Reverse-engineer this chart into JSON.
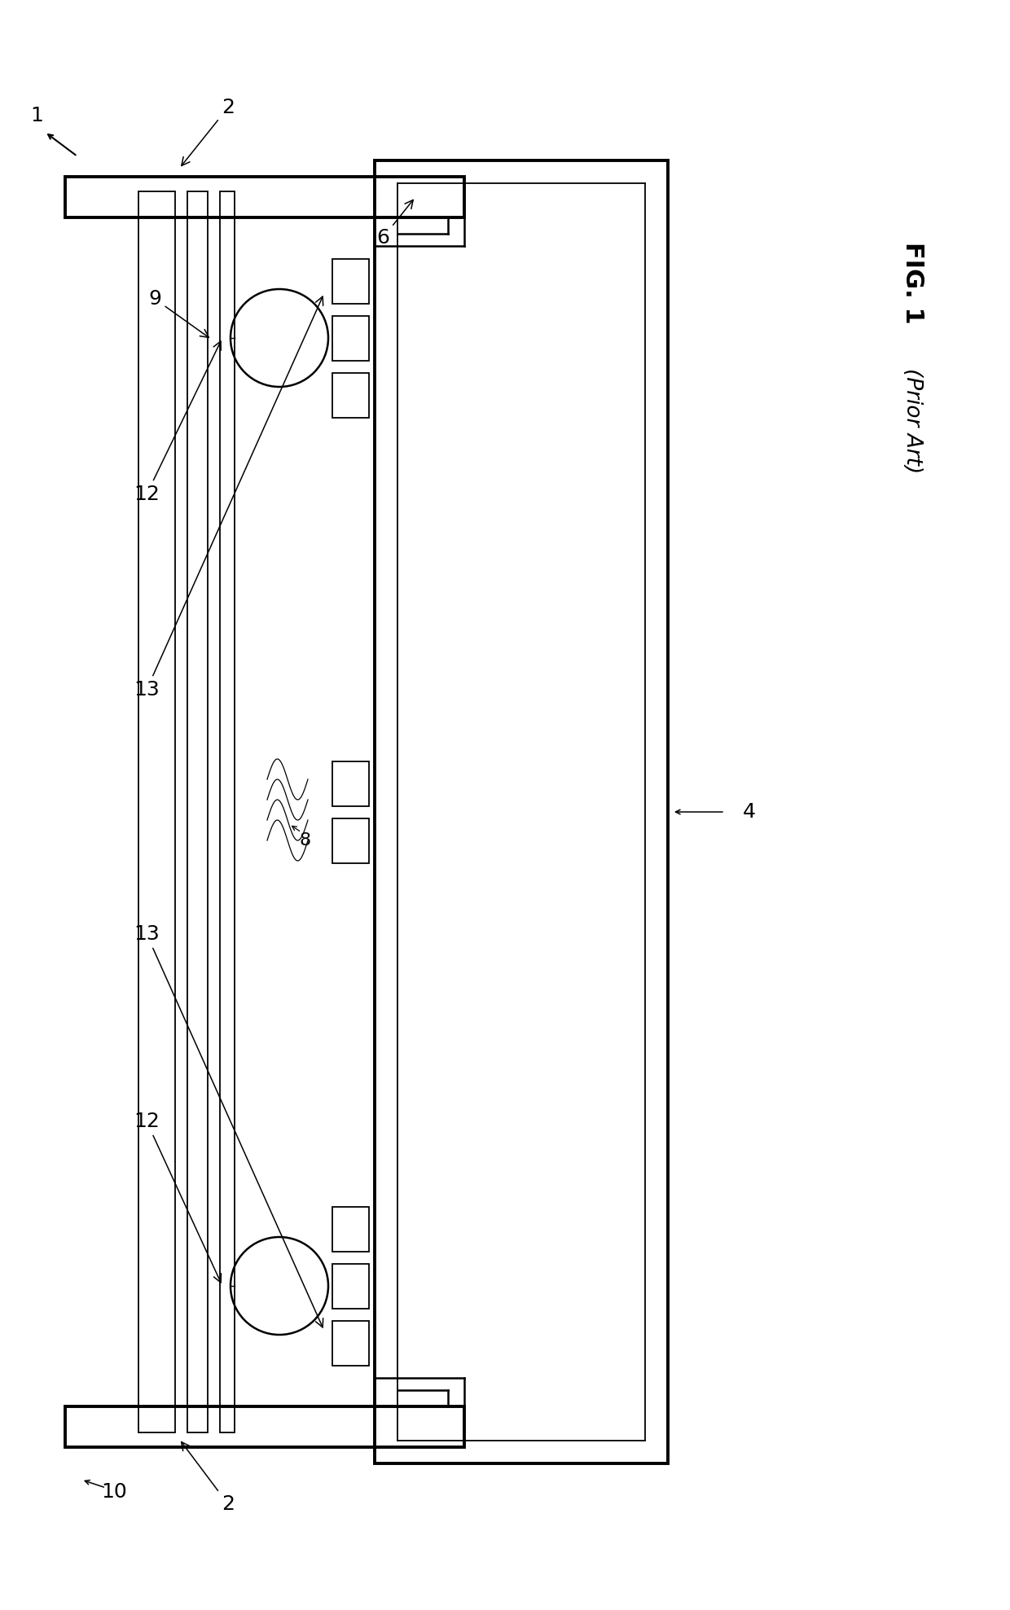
{
  "bg_color": "#ffffff",
  "line_color": "#000000",
  "fig_label": "FIG. 1",
  "fig_sublabel": "(Prior Art)",
  "lw_thick": 2.8,
  "lw_med": 1.8,
  "lw_thin": 1.3,
  "lw_xtra": 1.0,
  "fs_label": 18,
  "fs_fig": 22,
  "fs_prior": 19
}
